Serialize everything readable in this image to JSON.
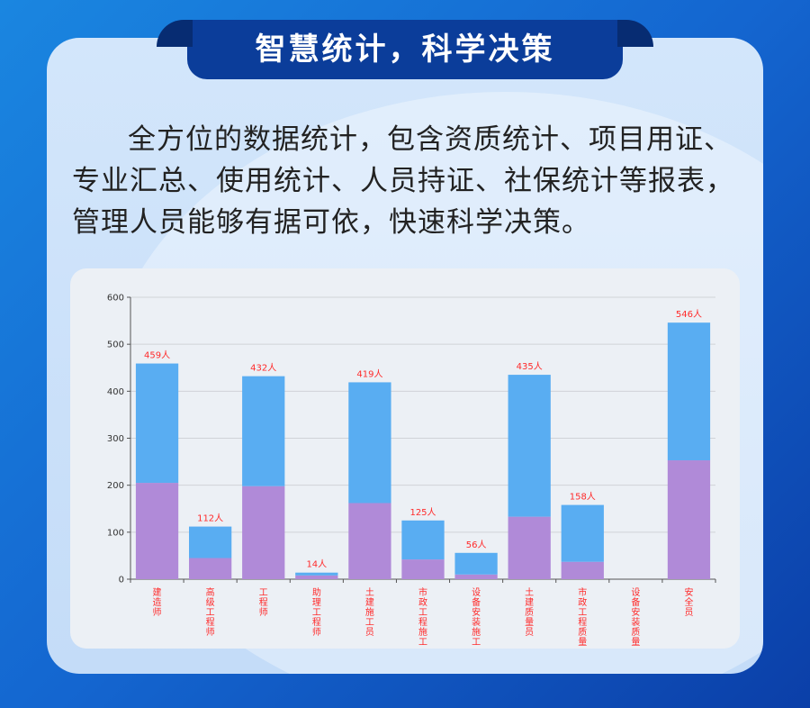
{
  "header": {
    "title": "智慧统计，科学决策"
  },
  "description": "全方位的数据统计，包含资质统计、项目用证、专业汇总、使用统计、人员持证、社保统计等报表，管理人员能够有据可依，快速科学决策。",
  "colors": {
    "total": "#59adf2",
    "part": "#b08ad8",
    "label": "#ff2a2a"
  },
  "chart_data": {
    "type": "bar",
    "stacked": true,
    "categories": [
      "建造师",
      "高级工程师",
      "工程师",
      "助理工程师",
      "土建施工员",
      "市政工程施工",
      "设备安装施工",
      "土建质量员",
      "市政工程质量",
      "设备安装质量",
      "安全员"
    ],
    "series": [
      {
        "values": [
          205,
          45,
          198,
          8,
          162,
          42,
          10,
          133,
          37,
          0,
          253
        ]
      },
      {
        "values": [
          254,
          67,
          234,
          6,
          257,
          83,
          46,
          302,
          121,
          0,
          293
        ]
      }
    ],
    "totals": [
      459,
      112,
      432,
      14,
      419,
      125,
      56,
      435,
      158,
      0,
      546
    ],
    "data_labels": [
      "459人",
      "112人",
      "432人",
      "14人",
      "419人",
      "125人",
      "56人",
      "435人",
      "158人",
      "",
      "546人"
    ],
    "ylim": [
      0,
      600
    ],
    "yticks": [
      0,
      100,
      200,
      300,
      400,
      500,
      600
    ],
    "grid": true
  }
}
